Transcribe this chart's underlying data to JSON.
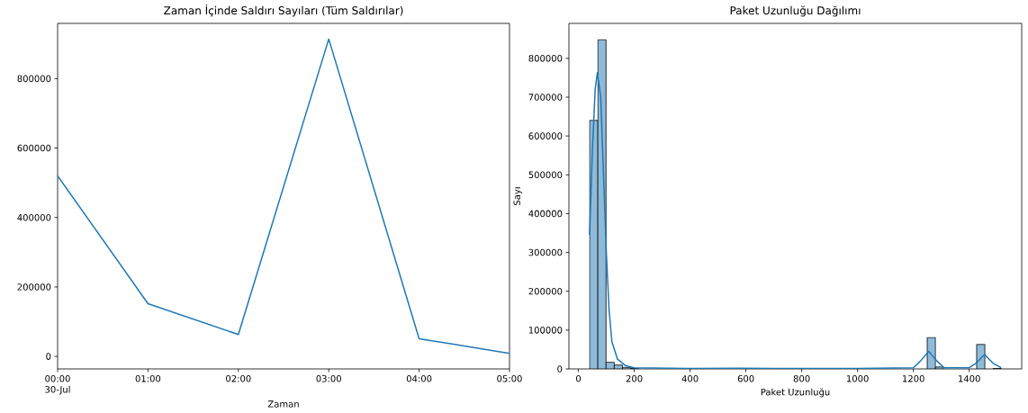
{
  "chart_data": [
    {
      "type": "line",
      "title": "Zaman İçinde Saldırı Sayıları (Tüm Saldırılar)",
      "xlabel": "Zaman",
      "color": "#1f77b4",
      "x": [
        0,
        1,
        2,
        3,
        4,
        5
      ],
      "values": [
        520000,
        152000,
        63000,
        914000,
        51000,
        9000
      ],
      "xlim": [
        0,
        5
      ],
      "xticks": [
        {
          "value": 0,
          "label": "00:00 30-Jul"
        },
        {
          "value": 1,
          "label": "01:00"
        },
        {
          "value": 2,
          "label": "02:00"
        },
        {
          "value": 3,
          "label": "03:00"
        },
        {
          "value": 4,
          "label": "04:00"
        },
        {
          "value": 5,
          "label": "05:00"
        }
      ],
      "ylim": [
        -36000,
        959000
      ],
      "yticks": [
        0,
        200000,
        400000,
        600000,
        800000
      ]
    },
    {
      "type": "histogram",
      "title": "Paket Uzunluğu Dağılımı",
      "xlabel": "Paket Uzunluğu",
      "ylabel": "Sayı",
      "series": [
        {
          "type": "histogram",
          "color": "#8fbbd9",
          "bins": [
            40,
            69.5,
            99,
            128.5,
            158,
            187.5,
            217,
            246.5,
            276,
            305.5,
            335,
            364.5,
            394,
            423.5,
            453,
            482.5,
            512,
            541.5,
            571,
            600.5,
            630,
            659.5,
            689,
            718.5,
            748,
            777.5,
            807,
            836.5,
            866,
            895.5,
            925,
            954.5,
            984,
            1013.5,
            1043,
            1072.5,
            1102,
            1131.5,
            1161,
            1190.5,
            1220,
            1249.5,
            1279,
            1308.5,
            1338,
            1367.5,
            1397,
            1426.5,
            1456,
            1485.5,
            1515
          ],
          "values": [
            640000,
            848000,
            17000,
            10000,
            4000,
            1000,
            null,
            null,
            0,
            0,
            0,
            0,
            0,
            0,
            0,
            0,
            0,
            0,
            null,
            null,
            0,
            0,
            0,
            0,
            0,
            0,
            0,
            0,
            0,
            0,
            0,
            1000,
            0,
            0,
            0,
            0,
            0,
            0,
            0,
            0,
            null,
            81000,
            5000,
            0,
            0,
            0,
            0,
            63000,
            0,
            1000
          ]
        },
        {
          "type": "line",
          "color": "#1f77b4",
          "x": [
            40,
            50,
            60,
            68,
            80,
            90,
            100,
            110,
            120,
            140,
            170,
            200,
            400,
            580,
            700,
            1000,
            1200,
            1225,
            1255,
            1285,
            1310,
            1400,
            1425,
            1455,
            1485,
            1514
          ],
          "values": [
            345000,
            560000,
            720000,
            763000,
            700000,
            500000,
            300000,
            150000,
            70000,
            25000,
            8000,
            3000,
            1000,
            2000,
            1000,
            1000,
            3000,
            20000,
            45000,
            20000,
            3000,
            3000,
            15000,
            37000,
            15000,
            3000
          ]
        }
      ],
      "xlim": [
        -34,
        1588
      ],
      "xticks": [
        0,
        200,
        400,
        600,
        800,
        1000,
        1200,
        1400
      ],
      "ylim": [
        0,
        890000
      ],
      "yticks": [
        0,
        100000,
        200000,
        300000,
        400000,
        500000,
        600000,
        700000,
        800000
      ]
    }
  ]
}
